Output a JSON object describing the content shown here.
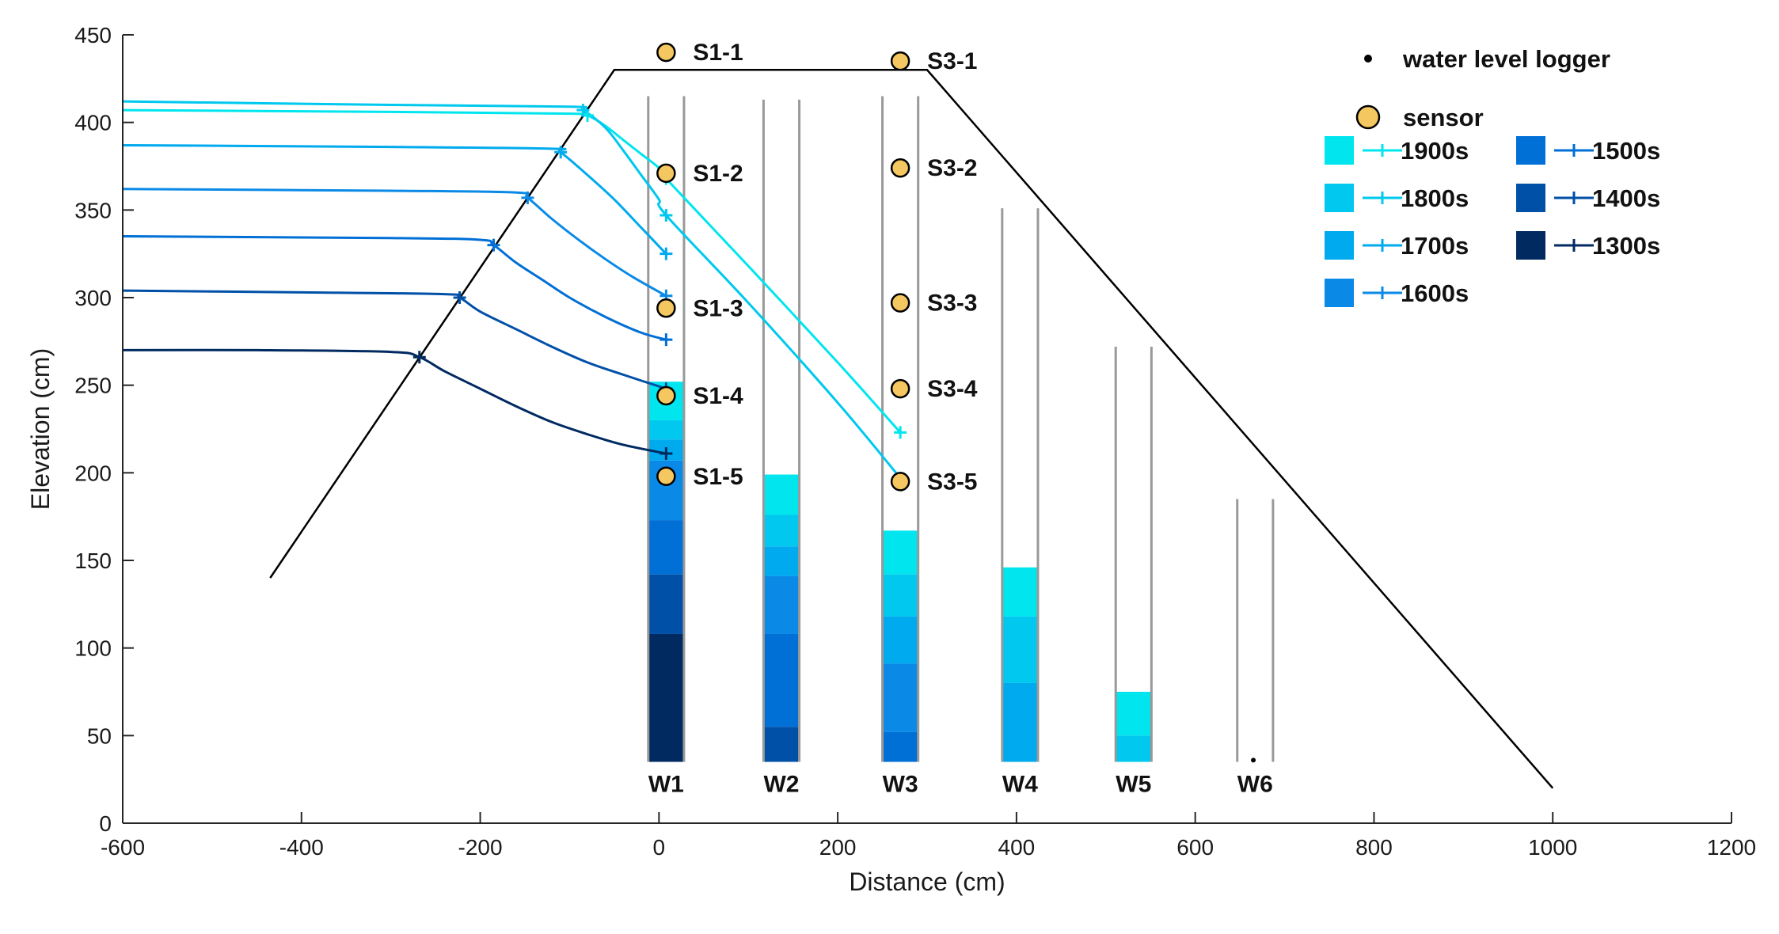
{
  "chart_data": {
    "type": "line",
    "title": "",
    "xlabel": "Distance (cm)",
    "ylabel": "Elevation (cm)",
    "xlim": [
      -600,
      1200
    ],
    "ylim": [
      0,
      450
    ],
    "xticks": [
      -600,
      -400,
      -200,
      0,
      200,
      400,
      600,
      800,
      1000,
      1200
    ],
    "yticks": [
      0,
      50,
      100,
      150,
      200,
      250,
      300,
      350,
      400,
      450
    ],
    "grid": false,
    "colors": {
      "1900s": "#00e5ee",
      "1800s": "#00c8ee",
      "1700s": "#00aaee",
      "1600s": "#0a8ae6",
      "1500s": "#006fd6",
      "1400s": "#0050a8",
      "1300s": "#002a60",
      "sensor_fill": "#f5c760",
      "embankment": "#000000",
      "well_wall": "#999999"
    },
    "embankment": {
      "x": [
        -435,
        -50,
        300,
        1000
      ],
      "y": [
        140,
        430,
        430,
        20
      ]
    },
    "series": [
      {
        "name": "1900s",
        "x": [
          -600,
          -300,
          -100,
          -80,
          -60,
          -40,
          -20,
          0,
          8,
          100,
          200,
          270
        ],
        "y": [
          407,
          406,
          405,
          404,
          398,
          390,
          382,
          374,
          368,
          318,
          263,
          223
        ]
      },
      {
        "name": "1800s",
        "x": [
          -600,
          -300,
          -100,
          -85,
          -60,
          -40,
          -20,
          0,
          8,
          100,
          200,
          270
        ],
        "y": [
          412,
          410,
          409,
          407,
          397,
          384,
          370,
          356,
          347,
          297,
          240,
          197
        ]
      },
      {
        "name": "1700s",
        "x": [
          -600,
          -300,
          -120,
          -110,
          -80,
          -50,
          -20,
          8
        ],
        "y": [
          387,
          386,
          385,
          383,
          370,
          356,
          340,
          325
        ]
      },
      {
        "name": "1600s",
        "x": [
          -600,
          -300,
          -160,
          -147,
          -120,
          -90,
          -60,
          -30,
          8
        ],
        "y": [
          362,
          361,
          360,
          357,
          345,
          333,
          322,
          312,
          301
        ]
      },
      {
        "name": "1500s",
        "x": [
          -600,
          -300,
          -200,
          -185,
          -160,
          -130,
          -100,
          -60,
          -20,
          8
        ],
        "y": [
          335,
          334,
          333,
          330,
          320,
          310,
          300,
          289,
          280,
          276
        ]
      },
      {
        "name": "1400s",
        "x": [
          -600,
          -400,
          -240,
          -223,
          -200,
          -160,
          -120,
          -80,
          -40,
          8
        ],
        "y": [
          304,
          303,
          302,
          300,
          292,
          282,
          272,
          263,
          256,
          248
        ]
      },
      {
        "name": "1300s",
        "x": [
          -600,
          -450,
          -300,
          -268,
          -240,
          -200,
          -160,
          -120,
          -80,
          -40,
          8
        ],
        "y": [
          270,
          270,
          269,
          266,
          258,
          248,
          238,
          229,
          222,
          216,
          211
        ]
      }
    ],
    "markers": [
      {
        "series": "1900s",
        "x": -80,
        "y": 404
      },
      {
        "series": "1900s",
        "x": 8,
        "y": 368
      },
      {
        "series": "1900s",
        "x": 270,
        "y": 223
      },
      {
        "series": "1800s",
        "x": -85,
        "y": 407
      },
      {
        "series": "1800s",
        "x": 8,
        "y": 347
      },
      {
        "series": "1800s",
        "x": 270,
        "y": 197
      },
      {
        "series": "1700s",
        "x": -110,
        "y": 383
      },
      {
        "series": "1700s",
        "x": 8,
        "y": 325
      },
      {
        "series": "1600s",
        "x": -147,
        "y": 357
      },
      {
        "series": "1600s",
        "x": 8,
        "y": 301
      },
      {
        "series": "1500s",
        "x": -185,
        "y": 330
      },
      {
        "series": "1500s",
        "x": 8,
        "y": 276
      },
      {
        "series": "1400s",
        "x": -223,
        "y": 300
      },
      {
        "series": "1400s",
        "x": 8,
        "y": 248
      },
      {
        "series": "1300s",
        "x": -268,
        "y": 266
      },
      {
        "series": "1300s",
        "x": 8,
        "y": 211
      }
    ],
    "wells": [
      {
        "name": "W1",
        "x_left": -12,
        "x_right": 28,
        "top": 415,
        "bottom": 35,
        "levels": [
          {
            "series": "1900s",
            "low": 230,
            "high": 252
          },
          {
            "series": "1800s",
            "low": 219,
            "high": 230
          },
          {
            "series": "1700s",
            "low": 207,
            "high": 219
          },
          {
            "series": "1600s",
            "low": 173,
            "high": 207
          },
          {
            "series": "1500s",
            "low": 142,
            "high": 173
          },
          {
            "series": "1400s",
            "low": 108,
            "high": 142
          },
          {
            "series": "1300s",
            "low": 35,
            "high": 108
          }
        ]
      },
      {
        "name": "W2",
        "x_left": 117,
        "x_right": 157,
        "top": 413,
        "bottom": 35,
        "levels": [
          {
            "series": "1900s",
            "low": 176,
            "high": 199
          },
          {
            "series": "1800s",
            "low": 158,
            "high": 176
          },
          {
            "series": "1700s",
            "low": 141,
            "high": 158
          },
          {
            "series": "1600s",
            "low": 108,
            "high": 141
          },
          {
            "series": "1500s",
            "low": 55,
            "high": 108
          },
          {
            "series": "1400s",
            "low": 35,
            "high": 55
          }
        ]
      },
      {
        "name": "W3",
        "x_left": 250,
        "x_right": 290,
        "top": 415,
        "bottom": 35,
        "levels": [
          {
            "series": "1900s",
            "low": 142,
            "high": 167
          },
          {
            "series": "1800s",
            "low": 118,
            "high": 142
          },
          {
            "series": "1700s",
            "low": 91,
            "high": 118
          },
          {
            "series": "1600s",
            "low": 52,
            "high": 91
          },
          {
            "series": "1500s",
            "low": 35,
            "high": 52
          }
        ]
      },
      {
        "name": "W4",
        "x_left": 384,
        "x_right": 424,
        "top": 351,
        "bottom": 35,
        "levels": [
          {
            "series": "1900s",
            "low": 118,
            "high": 146
          },
          {
            "series": "1800s",
            "low": 80,
            "high": 118
          },
          {
            "series": "1700s",
            "low": 35,
            "high": 80
          }
        ]
      },
      {
        "name": "W5",
        "x_left": 511,
        "x_right": 551,
        "top": 272,
        "bottom": 35,
        "levels": [
          {
            "series": "1900s",
            "low": 50,
            "high": 75
          },
          {
            "series": "1800s",
            "low": 35,
            "high": 50
          }
        ]
      },
      {
        "name": "W6",
        "x_left": 647,
        "x_right": 687,
        "top": 185,
        "bottom": 35,
        "levels": []
      }
    ],
    "sensors": [
      {
        "name": "S1-1",
        "x": 8,
        "y": 440
      },
      {
        "name": "S1-2",
        "x": 8,
        "y": 371
      },
      {
        "name": "S1-3",
        "x": 8,
        "y": 294
      },
      {
        "name": "S1-4",
        "x": 8,
        "y": 244
      },
      {
        "name": "S1-5",
        "x": 8,
        "y": 198
      },
      {
        "name": "S3-1",
        "x": 270,
        "y": 435
      },
      {
        "name": "S3-2",
        "x": 270,
        "y": 374
      },
      {
        "name": "S3-3",
        "x": 270,
        "y": 297
      },
      {
        "name": "S3-4",
        "x": 270,
        "y": 248
      },
      {
        "name": "S3-5",
        "x": 270,
        "y": 195
      }
    ],
    "water_level_loggers": [
      {
        "x": 665,
        "y": 36
      }
    ],
    "legend": {
      "placement": "top-right",
      "logger_label": "water level logger",
      "sensor_label": "sensor",
      "entries": [
        "1900s",
        "1800s",
        "1700s",
        "1600s",
        "1500s",
        "1400s",
        "1300s"
      ]
    }
  }
}
